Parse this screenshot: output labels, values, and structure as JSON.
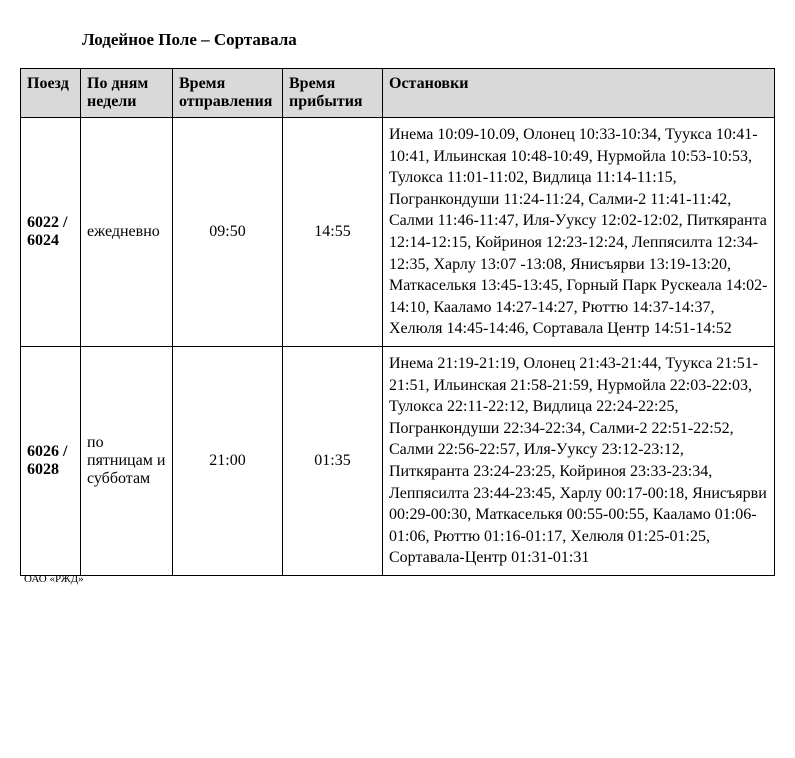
{
  "title": "Лодейное Поле – Сортавала",
  "columns": [
    "Поезд",
    "По дням недели",
    "Время отправления",
    "Время прибытия",
    "Остановки"
  ],
  "rows": [
    {
      "train": "6022 / 6024",
      "days": "ежедневно",
      "dep": "09:50",
      "arr": "14:55",
      "stops": "Инема 10:09-10.09, Олонец 10:33-10:34, Туукса 10:41-10:41, Ильинская 10:48-10:49, Нурмойла 10:53-10:53, Тулокса 11:01-11:02, Видлица 11:14-11:15, Погранкондуши 11:24-11:24, Салми-2 11:41-11:42, Салми 11:46-11:47, Иля-Ууксу 12:02-12:02, Питкяранта 12:14-12:15, Койриноя 12:23-12:24, Леппясилта 12:34-12:35, Харлу 13:07 -13:08, Янисъярви 13:19-13:20, Маткаселькя 13:45-13:45, Горный Парк Рускеала 14:02-14:10, Кааламо 14:27-14:27, Рюттю 14:37-14:37, Хелюля 14:45-14:46, Сортавала Центр 14:51-14:52"
    },
    {
      "train": "6026 / 6028",
      "days": "по пятницам и субботам",
      "dep": "21:00",
      "arr": "01:35",
      "stops": "Инема 21:19-21:19, Олонец 21:43-21:44, Туукса 21:51-21:51, Ильинская 21:58-21:59, Нурмойла 22:03-22:03, Тулокса 22:11-22:12, Видлица 22:24-22:25, Погранкондуши 22:34-22:34, Салми-2 22:51-22:52, Салми 22:56-22:57, Иля-Ууксу 23:12-23:12, Питкяранта 23:24-23:25, Койриноя 23:33-23:34, Леппясилта 23:44-23:45, Харлу 00:17-00:18, Янисъярви 00:29-00:30, Маткаселькя 00:55-00:55, Кааламо 01:06-01:06, Рюттю 01:16-01:17, Хелюля 01:25-01:25, Сортавала-Центр 01:31-01:31"
    }
  ],
  "footer": "ОАО «РЖД»"
}
